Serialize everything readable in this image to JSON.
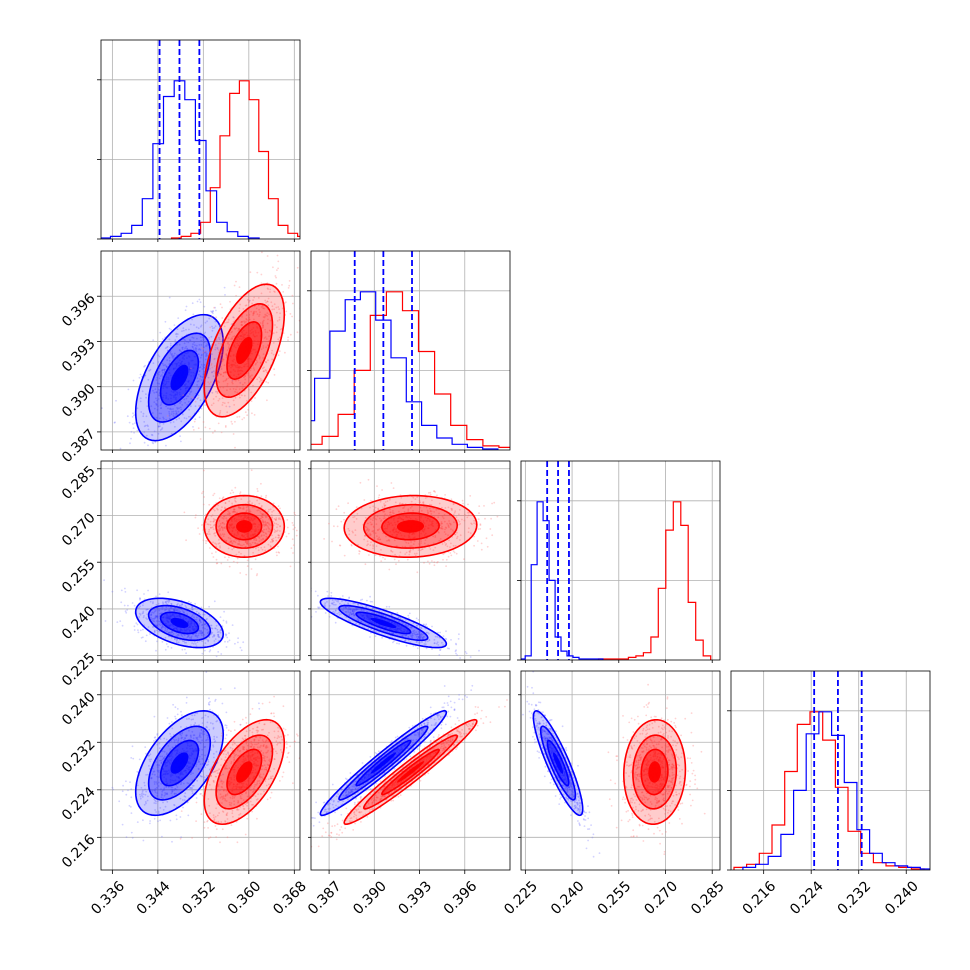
{
  "chart_data": {
    "type": "corner",
    "parameters": [
      {
        "ticks": [
          "0.336",
          "0.344",
          "0.352",
          "0.360",
          "0.368"
        ],
        "range": [
          0.334,
          0.369
        ]
      },
      {
        "ticks": [
          "0.387",
          "0.390",
          "0.393",
          "0.396"
        ],
        "range": [
          0.3858,
          0.399
        ]
      },
      {
        "ticks": [
          "0.225",
          "0.240",
          "0.255",
          "0.270",
          "0.285"
        ],
        "range": [
          0.2236,
          0.2875
        ]
      },
      {
        "ticks": [
          "0.216",
          "0.224",
          "0.232",
          "0.240"
        ],
        "range": [
          0.2105,
          0.244
        ]
      }
    ],
    "series": [
      {
        "color": "#0000ff",
        "quantiles": [
          [
            0.3443,
            0.3478,
            0.3513
          ],
          [
            0.3887,
            0.3906,
            0.3925
          ],
          [
            0.232,
            0.2355,
            0.239
          ],
          [
            0.2245,
            0.2285,
            0.2325
          ]
        ],
        "mean": [
          0.3478,
          0.3906,
          0.2355,
          0.2285
        ],
        "sigma": [
          0.0035,
          0.0019,
          0.0036,
          0.004
        ],
        "corr": [
          [
            1,
            0.55,
            -0.45,
            0.55
          ],
          [
            0.55,
            1,
            -0.85,
            0.97
          ],
          [
            -0.45,
            -0.85,
            1,
            -0.88
          ],
          [
            0.55,
            0.97,
            -0.88,
            1
          ]
        ],
        "hist": [
          [
            0,
            1,
            3,
            8,
            25,
            60,
            90,
            100,
            88,
            62,
            30,
            10,
            4,
            1,
            0
          ],
          [
            3,
            7,
            18,
            45,
            75,
            95,
            100,
            82,
            58,
            30,
            15,
            7,
            3,
            1,
            0
          ],
          [
            0,
            0,
            2,
            60,
            100,
            88,
            50,
            14,
            5,
            2,
            1,
            0,
            0,
            0,
            0
          ],
          [
            1,
            3,
            8,
            22,
            50,
            86,
            100,
            85,
            55,
            25,
            10,
            4,
            2,
            1,
            0
          ]
        ]
      },
      {
        "color": "#ff0000",
        "quantiles": null,
        "mean": [
          0.3592,
          0.3924,
          0.2665,
          0.227
        ],
        "sigma": [
          0.0032,
          0.002,
          0.0045,
          0.004
        ],
        "corr": [
          [
            1,
            0.55,
            0.0,
            0.55
          ],
          [
            0.55,
            1,
            0.05,
            0.97
          ],
          [
            0.0,
            0.05,
            1,
            0.05
          ],
          [
            0.55,
            0.97,
            0.05,
            1
          ]
        ],
        "hist": [
          [
            0,
            1,
            3,
            10,
            32,
            65,
            92,
            100,
            88,
            55,
            25,
            8,
            3,
            1,
            0
          ],
          [
            1,
            3,
            8,
            22,
            50,
            85,
            100,
            88,
            62,
            35,
            15,
            6,
            2,
            1,
            0
          ],
          [
            0,
            0,
            0,
            0,
            1,
            2,
            4,
            14,
            45,
            82,
            100,
            85,
            36,
            12,
            2
          ],
          [
            1,
            3,
            10,
            28,
            62,
            92,
            100,
            82,
            52,
            24,
            10,
            4,
            2,
            1,
            0
          ]
        ]
      }
    ]
  }
}
